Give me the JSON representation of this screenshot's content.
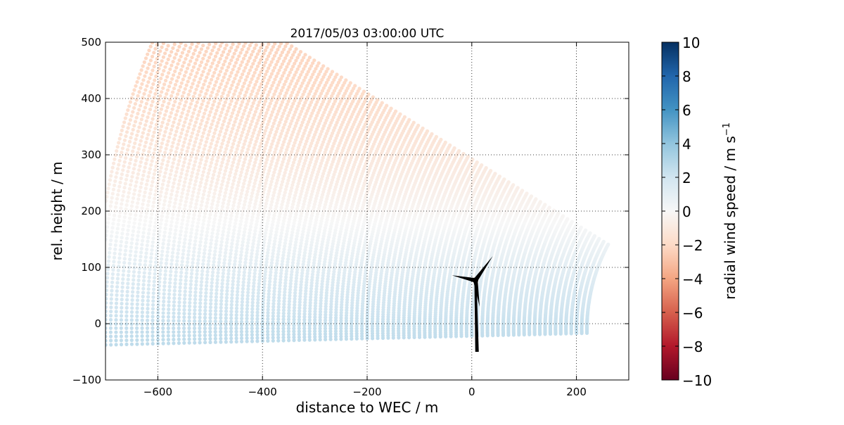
{
  "chart_data": {
    "type": "scatter",
    "title": "2017/05/03 03:00:00 UTC",
    "xlabel": "distance to WEC / m",
    "ylabel": "rel. height / m",
    "xlim": [
      -700,
      300
    ],
    "ylim": [
      -100,
      500
    ],
    "xticks": [
      -600,
      -400,
      -200,
      0,
      200
    ],
    "yticks": [
      -100,
      0,
      100,
      200,
      300,
      400,
      500
    ],
    "grid": true,
    "grid_style": "dotted",
    "scan": {
      "description_free": true,
      "origin_x": 520,
      "origin_y": -10,
      "range_min": 300,
      "range_max": 1240,
      "range_step": 10,
      "elevation_min_deg": -1.3,
      "elevation_max_deg": 30.5,
      "elevation_step_deg": 0.35,
      "x_min": -700
    },
    "wind_profile": {
      "height": [
        -40,
        0,
        60,
        120,
        180,
        240,
        300,
        360,
        420,
        500
      ],
      "radial_wind_speed": [
        2.6,
        2.3,
        1.6,
        0.8,
        0.0,
        -0.6,
        -1.1,
        -1.5,
        -1.9,
        -2.2
      ]
    },
    "turbine": {
      "tower_base": [
        10,
        -50
      ],
      "hub": [
        7,
        77
      ],
      "blade_tips": [
        [
          40,
          120
        ],
        [
          15,
          30
        ],
        [
          -38,
          86
        ]
      ]
    },
    "colorbar": {
      "label": "radial wind speed / m s",
      "label_superscript": "−1",
      "vmin": -10,
      "vmax": 10,
      "ticks": [
        "10",
        "8",
        "6",
        "4",
        "2",
        "0",
        "−2",
        "−4",
        "−6",
        "−8",
        "−10"
      ],
      "colormap": "RdBu",
      "stops": [
        "#67001f",
        "#b2182b",
        "#d6604d",
        "#f4a582",
        "#fddbc7",
        "#f7f7f7",
        "#d1e5f0",
        "#92c5de",
        "#4393c3",
        "#2166ac",
        "#053061"
      ]
    },
    "marker_color_turbine": "#000000"
  }
}
